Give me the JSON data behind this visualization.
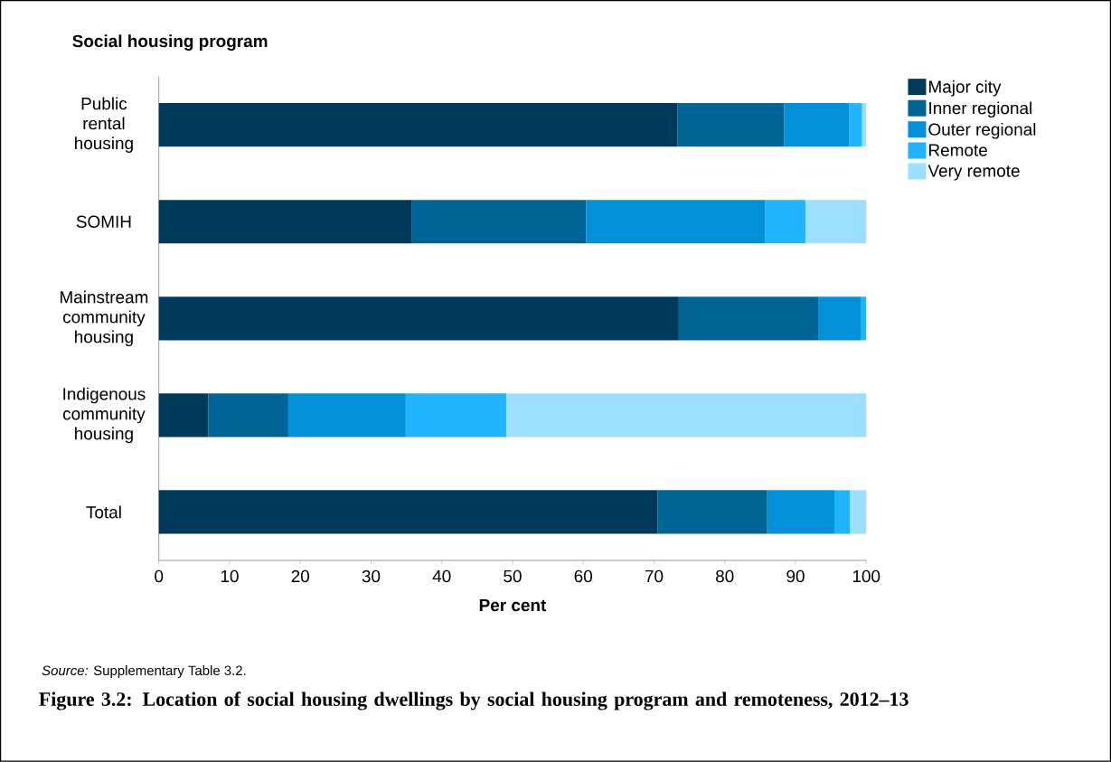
{
  "chart_data": {
    "type": "bar",
    "orientation": "horizontal",
    "stacked": true,
    "title": "Figure 3.2: Location of social housing dwellings by social housing program and remoteness, 2012–13",
    "ylabel": "Social housing program",
    "xlabel": "Per cent",
    "annotations": [
      "*Source:* Supplementary Table 3.2."
    ],
    "categories": [
      "Public rental housing",
      "SOMIH",
      "Mainstream community housing",
      "Indigenous community housing",
      "Total"
    ],
    "series": [
      {
        "name": "Major city",
        "color": "#003a5a",
        "values": [
          73.3,
          35.7,
          73.5,
          7.0,
          70.5
        ]
      },
      {
        "name": "Inner regional",
        "color": "#006496",
        "values": [
          15.1,
          24.7,
          19.7,
          11.3,
          15.5
        ]
      },
      {
        "name": "Outer regional",
        "color": "#0290d8",
        "values": [
          9.2,
          25.3,
          6.0,
          16.6,
          9.5
        ]
      },
      {
        "name": "Remote",
        "color": "#20b4ff",
        "values": [
          1.8,
          5.7,
          0.8,
          14.2,
          2.2
        ]
      },
      {
        "name": "Very remote",
        "color": "#9cdfff",
        "values": [
          0.6,
          8.6,
          0.0,
          50.9,
          2.3
        ]
      }
    ],
    "xlim": [
      0,
      100
    ],
    "xticks": [
      0,
      10,
      20,
      30,
      40,
      50,
      60,
      70,
      80,
      90,
      100
    ],
    "legend": "top right"
  }
}
